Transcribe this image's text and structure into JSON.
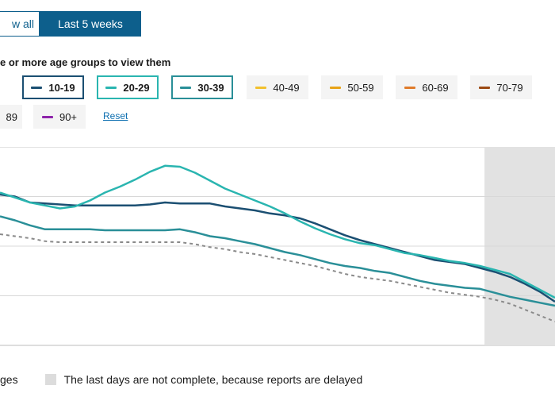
{
  "toggle": {
    "show_all": "w all",
    "last5": "Last 5 weeks"
  },
  "instruction": "e or more age groups to view them",
  "chips": [
    {
      "label": "10-19",
      "color": "#1b4f72",
      "selected": true
    },
    {
      "label": "20-29",
      "color": "#2ab5b0",
      "selected": true
    },
    {
      "label": "30-39",
      "color": "#2a8f98",
      "selected": true
    },
    {
      "label": "40-49",
      "color": "#f2c12e",
      "selected": false
    },
    {
      "label": "50-59",
      "color": "#e8a317",
      "selected": false
    },
    {
      "label": "60-69",
      "color": "#e07b2a",
      "selected": false
    },
    {
      "label": "70-79",
      "color": "#9c4a14",
      "selected": false
    },
    {
      "label": "89",
      "color": "#8a8a8a",
      "selected": false
    },
    {
      "label": "90+",
      "color": "#8e24aa",
      "selected": false
    }
  ],
  "reset_label": "Reset",
  "legend": {
    "all_ages": "ges",
    "incomplete": "The last days are not complete, because reports are delayed"
  },
  "chart_data": {
    "type": "line",
    "grid": true,
    "shaded_region": {
      "start_fraction": 0.873,
      "meaning": "incomplete data"
    },
    "series": [
      {
        "name": "10-19",
        "color": "#1b4f72",
        "values": [
          0.76,
          0.75,
          0.72,
          0.715,
          0.71,
          0.705,
          0.705,
          0.705,
          0.705,
          0.705,
          0.71,
          0.72,
          0.715,
          0.715,
          0.715,
          0.7,
          0.69,
          0.68,
          0.665,
          0.655,
          0.64,
          0.615,
          0.585,
          0.555,
          0.53,
          0.51,
          0.49,
          0.47,
          0.45,
          0.43,
          0.42,
          0.41,
          0.39,
          0.37,
          0.345,
          0.31,
          0.27,
          0.22
        ]
      },
      {
        "name": "20-29",
        "color": "#2ab5b0",
        "values": [
          0.77,
          0.745,
          0.72,
          0.705,
          0.69,
          0.7,
          0.73,
          0.77,
          0.8,
          0.835,
          0.875,
          0.905,
          0.9,
          0.87,
          0.83,
          0.79,
          0.76,
          0.73,
          0.7,
          0.665,
          0.625,
          0.59,
          0.56,
          0.535,
          0.515,
          0.505,
          0.485,
          0.465,
          0.455,
          0.44,
          0.425,
          0.415,
          0.4,
          0.38,
          0.36,
          0.32,
          0.28,
          0.24
        ]
      },
      {
        "name": "30-39",
        "color": "#2a8f98",
        "values": [
          0.65,
          0.63,
          0.605,
          0.585,
          0.585,
          0.585,
          0.585,
          0.58,
          0.58,
          0.58,
          0.58,
          0.58,
          0.585,
          0.57,
          0.55,
          0.54,
          0.525,
          0.51,
          0.49,
          0.47,
          0.455,
          0.435,
          0.415,
          0.4,
          0.39,
          0.375,
          0.365,
          0.345,
          0.325,
          0.31,
          0.3,
          0.29,
          0.285,
          0.265,
          0.245,
          0.23,
          0.215,
          0.2
        ]
      },
      {
        "name": "All ages",
        "color": "#8a8a8a",
        "dashed": true,
        "values": [
          0.56,
          0.55,
          0.54,
          0.525,
          0.52,
          0.52,
          0.52,
          0.52,
          0.52,
          0.52,
          0.52,
          0.52,
          0.52,
          0.51,
          0.495,
          0.485,
          0.47,
          0.46,
          0.445,
          0.43,
          0.415,
          0.4,
          0.38,
          0.36,
          0.345,
          0.335,
          0.325,
          0.31,
          0.295,
          0.28,
          0.265,
          0.255,
          0.245,
          0.23,
          0.21,
          0.18,
          0.15,
          0.12
        ]
      }
    ]
  }
}
